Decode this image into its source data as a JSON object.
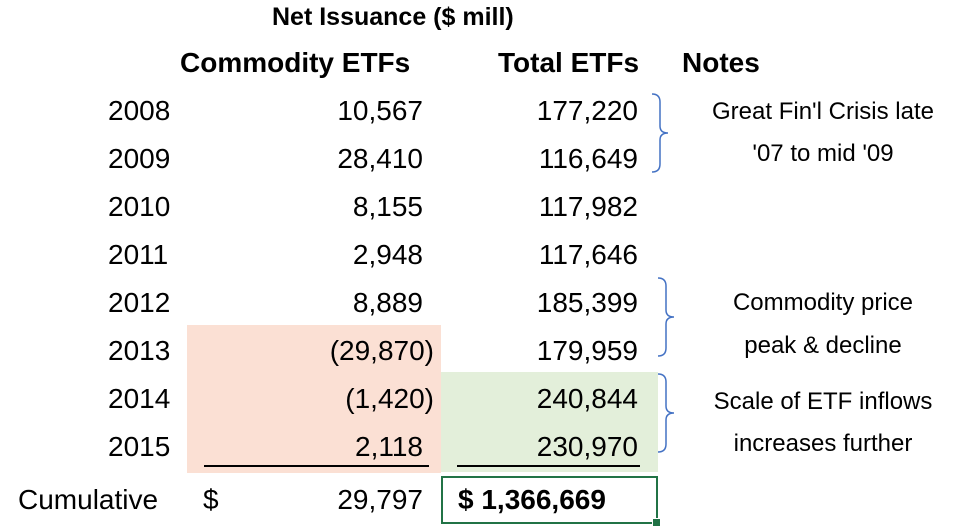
{
  "title": "Net Issuance ($ mill)",
  "headers": {
    "commodity": "Commodity ETFs",
    "total": "Total ETFs",
    "notes": "Notes"
  },
  "rows": [
    {
      "year": "2008",
      "commodity": "10,567",
      "total": "177,220"
    },
    {
      "year": "2009",
      "commodity": "28,410",
      "total": "116,649"
    },
    {
      "year": "2010",
      "commodity": "8,155",
      "total": "117,982"
    },
    {
      "year": "2011",
      "commodity": "2,948",
      "total": "117,646"
    },
    {
      "year": "2012",
      "commodity": "8,889",
      "total": "185,399"
    },
    {
      "year": "2013",
      "commodity": "(29,870)",
      "total": "179,959"
    },
    {
      "year": "2014",
      "commodity": "(1,420)",
      "total": "240,844"
    },
    {
      "year": "2015",
      "commodity": "2,118",
      "total": "230,970"
    }
  ],
  "cumulative": {
    "label": "Cumulative",
    "currency": "$",
    "commodity": "29,797",
    "total": "$ 1,366,669"
  },
  "notes": [
    {
      "line1": "Great Fin'l Crisis late",
      "line2": "'07 to mid '09"
    },
    {
      "line1": "Commodity price",
      "line2": "peak & decline"
    },
    {
      "line1": "Scale of ETF inflows",
      "line2": "increases further"
    }
  ],
  "colors": {
    "negative_highlight": "#fbe0d4",
    "growth_highlight": "#e3efda",
    "selection_border": "#217346",
    "brace": "#4472c4"
  }
}
